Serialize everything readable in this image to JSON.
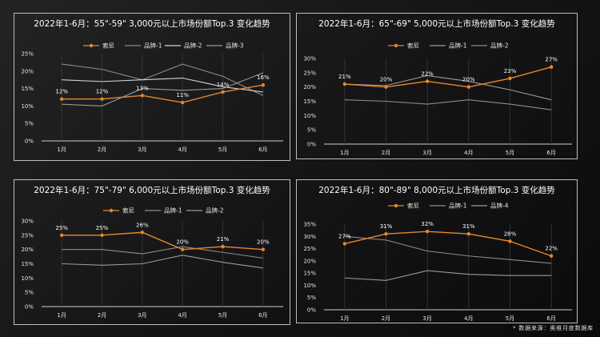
{
  "source_note": "* 数据来源：奥维月度数据库",
  "chart_data": [
    {
      "type": "line",
      "title": "2022年1-6月：55\"-59\" 3,000元以上市场份额Top.3 变化趋势",
      "categories": [
        "1月",
        "2月",
        "3月",
        "4月",
        "5月",
        "6月"
      ],
      "yticks": [
        "0%",
        "5%",
        "10%",
        "15%",
        "20%",
        "25%"
      ],
      "ylim": [
        0,
        25
      ],
      "series": [
        {
          "name": "索尼",
          "color": "#e6872a",
          "values": [
            12,
            12,
            13,
            11,
            14,
            16
          ],
          "labels": [
            "12%",
            "12%",
            "13%",
            "11%",
            "14%",
            "16%"
          ]
        },
        {
          "name": "品牌-1",
          "color": "#8c8c8c",
          "values": [
            22,
            20.5,
            17.5,
            22,
            18.5,
            13
          ]
        },
        {
          "name": "品牌-2",
          "color": "#d4d4d4",
          "values": [
            17.5,
            17,
            17.5,
            18,
            15.5,
            14
          ]
        },
        {
          "name": "品牌-3",
          "color": "#9a9a9a",
          "values": [
            10.5,
            10,
            15,
            14.5,
            15,
            19.5
          ]
        }
      ]
    },
    {
      "type": "line",
      "title": "2022年1-6月：65\"-69\" 5,000元以上市场份额Top.3 变化趋势",
      "categories": [
        "1月",
        "2月",
        "3月",
        "4月",
        "5月",
        "6月"
      ],
      "yticks": [
        "0%",
        "5%",
        "10%",
        "15%",
        "20%",
        "25%",
        "30%"
      ],
      "ylim": [
        0,
        30
      ],
      "series": [
        {
          "name": "索尼",
          "color": "#e6872a",
          "values": [
            21,
            20,
            22,
            20,
            23,
            27
          ],
          "labels": [
            "21%",
            "20%",
            "22%",
            "20%",
            "23%",
            "27%"
          ]
        },
        {
          "name": "品牌-1",
          "color": "#9a9a9a",
          "values": [
            21,
            20.5,
            24,
            22,
            19,
            15.5
          ]
        },
        {
          "name": "品牌-2",
          "color": "#8c8c8c",
          "values": [
            15.5,
            15,
            14,
            15.5,
            14,
            12
          ]
        }
      ]
    },
    {
      "type": "line",
      "title": "2022年1-6月：75\"-79\" 6,000元以上市场份额Top.3 变化趋势",
      "categories": [
        "1月",
        "2月",
        "3月",
        "4月",
        "5月",
        "6月"
      ],
      "yticks": [
        "0%",
        "5%",
        "10%",
        "15%",
        "20%",
        "25%",
        "30%"
      ],
      "ylim": [
        0,
        30
      ],
      "series": [
        {
          "name": "索尼",
          "color": "#e6872a",
          "values": [
            25,
            25,
            26,
            20,
            21,
            20
          ],
          "labels": [
            "25%",
            "25%",
            "26%",
            "20%",
            "21%",
            "20%"
          ]
        },
        {
          "name": "品牌-1",
          "color": "#8c8c8c",
          "values": [
            20,
            20,
            18.5,
            21,
            19,
            17
          ]
        },
        {
          "name": "品牌-2",
          "color": "#9a9a9a",
          "values": [
            15,
            14.5,
            15,
            18,
            15.5,
            13.5
          ]
        }
      ]
    },
    {
      "type": "line",
      "title": "2022年1-6月：80\"-89\" 8,000元以上市场份额Top.3 变化趋势",
      "categories": [
        "1月",
        "2月",
        "3月",
        "4月",
        "5月",
        "6月"
      ],
      "yticks": [
        "0%",
        "5%",
        "10%",
        "15%",
        "20%",
        "25%",
        "30%",
        "35%"
      ],
      "ylim": [
        0,
        35
      ],
      "series": [
        {
          "name": "索尼",
          "color": "#e6872a",
          "values": [
            27,
            31,
            32,
            31,
            28,
            22
          ],
          "labels": [
            "27%",
            "31%",
            "32%",
            "31%",
            "28%",
            "22%"
          ]
        },
        {
          "name": "品牌-1",
          "color": "#8c8c8c",
          "values": [
            30,
            28.5,
            24,
            22,
            20.5,
            19
          ]
        },
        {
          "name": "品牌-4",
          "color": "#9a9a9a",
          "values": [
            13,
            12,
            16,
            14.5,
            14,
            14
          ]
        }
      ]
    }
  ]
}
